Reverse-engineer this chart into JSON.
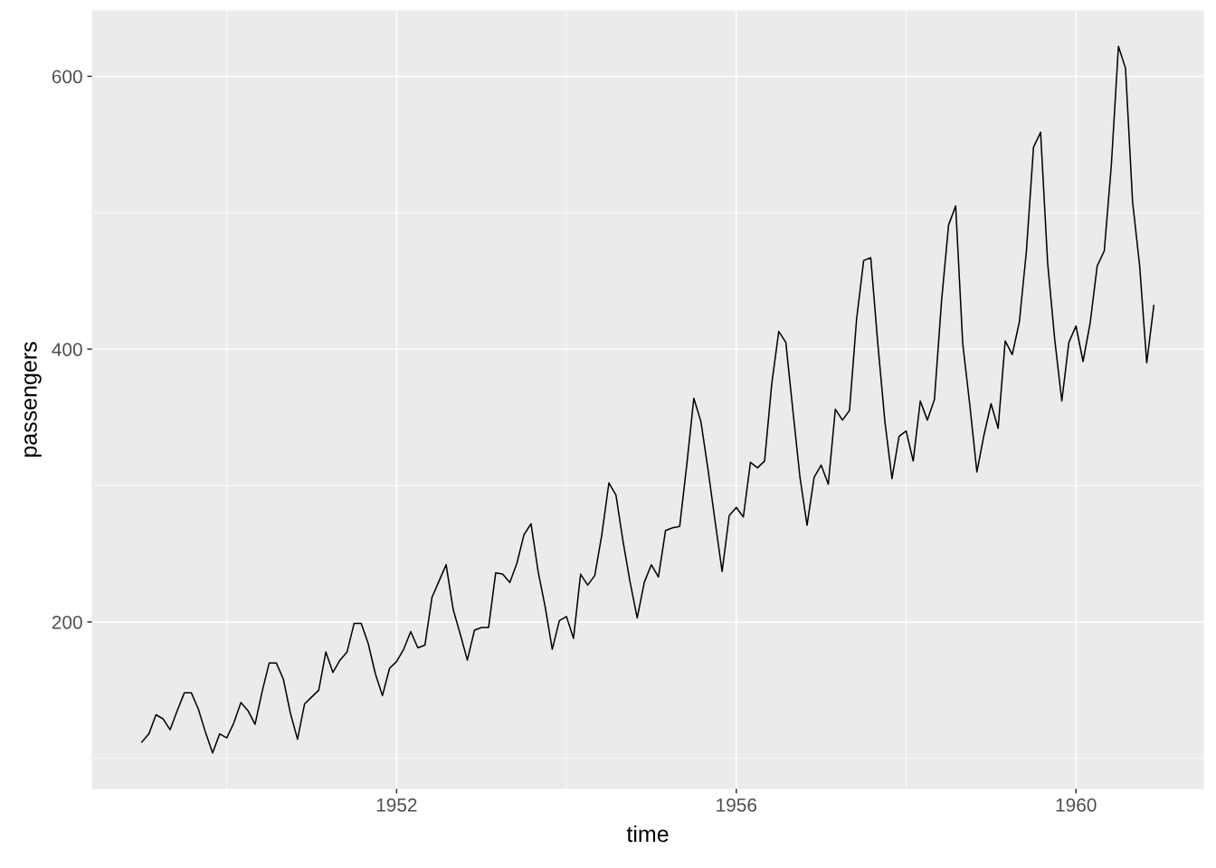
{
  "chart_data": {
    "type": "line",
    "xlabel": "time",
    "ylabel": "passengers",
    "x": [
      "1949-01",
      "1949-02",
      "1949-03",
      "1949-04",
      "1949-05",
      "1949-06",
      "1949-07",
      "1949-08",
      "1949-09",
      "1949-10",
      "1949-11",
      "1949-12",
      "1950-01",
      "1950-02",
      "1950-03",
      "1950-04",
      "1950-05",
      "1950-06",
      "1950-07",
      "1950-08",
      "1950-09",
      "1950-10",
      "1950-11",
      "1950-12",
      "1951-01",
      "1951-02",
      "1951-03",
      "1951-04",
      "1951-05",
      "1951-06",
      "1951-07",
      "1951-08",
      "1951-09",
      "1951-10",
      "1951-11",
      "1951-12",
      "1952-01",
      "1952-02",
      "1952-03",
      "1952-04",
      "1952-05",
      "1952-06",
      "1952-07",
      "1952-08",
      "1952-09",
      "1952-10",
      "1952-11",
      "1952-12",
      "1953-01",
      "1953-02",
      "1953-03",
      "1953-04",
      "1953-05",
      "1953-06",
      "1953-07",
      "1953-08",
      "1953-09",
      "1953-10",
      "1953-11",
      "1953-12",
      "1954-01",
      "1954-02",
      "1954-03",
      "1954-04",
      "1954-05",
      "1954-06",
      "1954-07",
      "1954-08",
      "1954-09",
      "1954-10",
      "1954-11",
      "1954-12",
      "1955-01",
      "1955-02",
      "1955-03",
      "1955-04",
      "1955-05",
      "1955-06",
      "1955-07",
      "1955-08",
      "1955-09",
      "1955-10",
      "1955-11",
      "1955-12",
      "1956-01",
      "1956-02",
      "1956-03",
      "1956-04",
      "1956-05",
      "1956-06",
      "1956-07",
      "1956-08",
      "1956-09",
      "1956-10",
      "1956-11",
      "1956-12",
      "1957-01",
      "1957-02",
      "1957-03",
      "1957-04",
      "1957-05",
      "1957-06",
      "1957-07",
      "1957-08",
      "1957-09",
      "1957-10",
      "1957-11",
      "1957-12",
      "1958-01",
      "1958-02",
      "1958-03",
      "1958-04",
      "1958-05",
      "1958-06",
      "1958-07",
      "1958-08",
      "1958-09",
      "1958-10",
      "1958-11",
      "1958-12",
      "1959-01",
      "1959-02",
      "1959-03",
      "1959-04",
      "1959-05",
      "1959-06",
      "1959-07",
      "1959-08",
      "1959-09",
      "1959-10",
      "1959-11",
      "1959-12",
      "1960-01",
      "1960-02",
      "1960-03",
      "1960-04",
      "1960-05",
      "1960-06",
      "1960-07",
      "1960-08",
      "1960-09",
      "1960-10",
      "1960-11",
      "1960-12"
    ],
    "series": [
      {
        "color": "#000000",
        "values": [
          112,
          118,
          132,
          129,
          121,
          135,
          148,
          148,
          136,
          119,
          104,
          118,
          115,
          126,
          141,
          135,
          125,
          149,
          170,
          170,
          158,
          133,
          114,
          140,
          145,
          150,
          178,
          163,
          172,
          178,
          199,
          199,
          184,
          162,
          146,
          166,
          171,
          180,
          193,
          181,
          183,
          218,
          230,
          242,
          209,
          191,
          172,
          194,
          196,
          196,
          236,
          235,
          229,
          243,
          264,
          272,
          237,
          211,
          180,
          201,
          204,
          188,
          235,
          227,
          234,
          264,
          302,
          293,
          259,
          229,
          203,
          229,
          242,
          233,
          267,
          269,
          270,
          315,
          364,
          347,
          312,
          274,
          237,
          278,
          284,
          277,
          317,
          313,
          318,
          374,
          413,
          405,
          355,
          306,
          271,
          306,
          315,
          301,
          356,
          348,
          355,
          422,
          465,
          467,
          404,
          347,
          305,
          336,
          340,
          318,
          362,
          348,
          363,
          435,
          491,
          505,
          404,
          359,
          310,
          337,
          360,
          342,
          406,
          396,
          420,
          472,
          548,
          559,
          463,
          407,
          362,
          405,
          417,
          391,
          419,
          461,
          472,
          535,
          622,
          606,
          508,
          461,
          390,
          432
        ]
      }
    ],
    "xlim": [
      "1948-06",
      "1961-07"
    ],
    "xticks": [
      {
        "value": "1952-01",
        "label": "1952"
      },
      {
        "value": "1956-01",
        "label": "1956"
      },
      {
        "value": "1960-01",
        "label": "1960"
      }
    ],
    "ylim": [
      78,
      648
    ],
    "yticks": [
      200,
      400,
      600
    ],
    "grid": true,
    "marker": "none",
    "line_style": "solid"
  }
}
